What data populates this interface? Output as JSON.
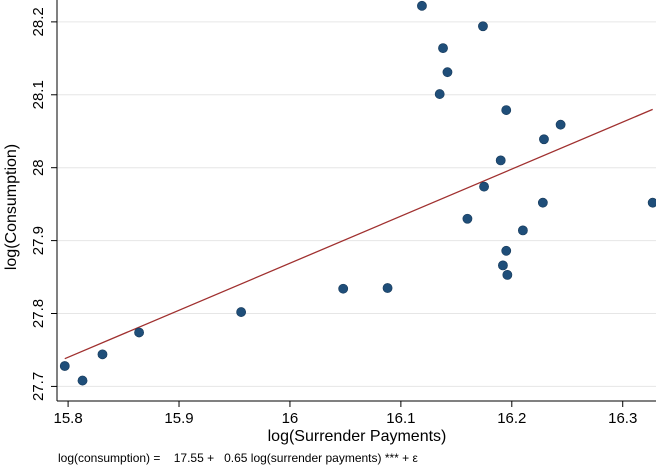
{
  "chart_data": {
    "type": "scatter",
    "xlabel": "log(Surrender Payments)",
    "ylabel": "log(Consumption)",
    "xlim": [
      15.79,
      16.33
    ],
    "ylim": [
      27.68,
      28.23
    ],
    "x_ticks": [
      15.8,
      15.9,
      16.0,
      16.1,
      16.2,
      16.3
    ],
    "x_tick_labels": [
      "15.8",
      "15.9",
      "16",
      "16.1",
      "16.2",
      "16.3"
    ],
    "y_ticks": [
      27.7,
      27.8,
      27.9,
      28.0,
      28.1,
      28.2
    ],
    "y_tick_labels": [
      "27.7",
      "27.8",
      "27.9",
      "28",
      "28.1",
      "28.2"
    ],
    "grid": "horizontal",
    "points": [
      {
        "x": 15.797,
        "y": 27.728
      },
      {
        "x": 15.813,
        "y": 27.708
      },
      {
        "x": 15.831,
        "y": 27.744
      },
      {
        "x": 15.864,
        "y": 27.774
      },
      {
        "x": 15.956,
        "y": 27.802
      },
      {
        "x": 16.048,
        "y": 27.834
      },
      {
        "x": 16.088,
        "y": 27.835
      },
      {
        "x": 16.119,
        "y": 28.222
      },
      {
        "x": 16.135,
        "y": 28.101
      },
      {
        "x": 16.138,
        "y": 28.164
      },
      {
        "x": 16.142,
        "y": 28.131
      },
      {
        "x": 16.16,
        "y": 27.93
      },
      {
        "x": 16.174,
        "y": 28.194
      },
      {
        "x": 16.175,
        "y": 27.974
      },
      {
        "x": 16.19,
        "y": 28.01
      },
      {
        "x": 16.192,
        "y": 27.866
      },
      {
        "x": 16.195,
        "y": 27.886
      },
      {
        "x": 16.195,
        "y": 28.079
      },
      {
        "x": 16.196,
        "y": 27.853
      },
      {
        "x": 16.21,
        "y": 27.914
      },
      {
        "x": 16.228,
        "y": 27.952
      },
      {
        "x": 16.229,
        "y": 28.039
      },
      {
        "x": 16.244,
        "y": 28.059
      },
      {
        "x": 16.327,
        "y": 27.952
      }
    ],
    "fit_line": {
      "x": [
        15.797,
        16.327
      ],
      "y": [
        27.738,
        28.08
      ]
    },
    "point_color": "#1f4e79",
    "line_color": "#a0302f"
  },
  "footnote": "log(consumption) =    17.55 +   0.65 log(surrender payments) *** + ε"
}
